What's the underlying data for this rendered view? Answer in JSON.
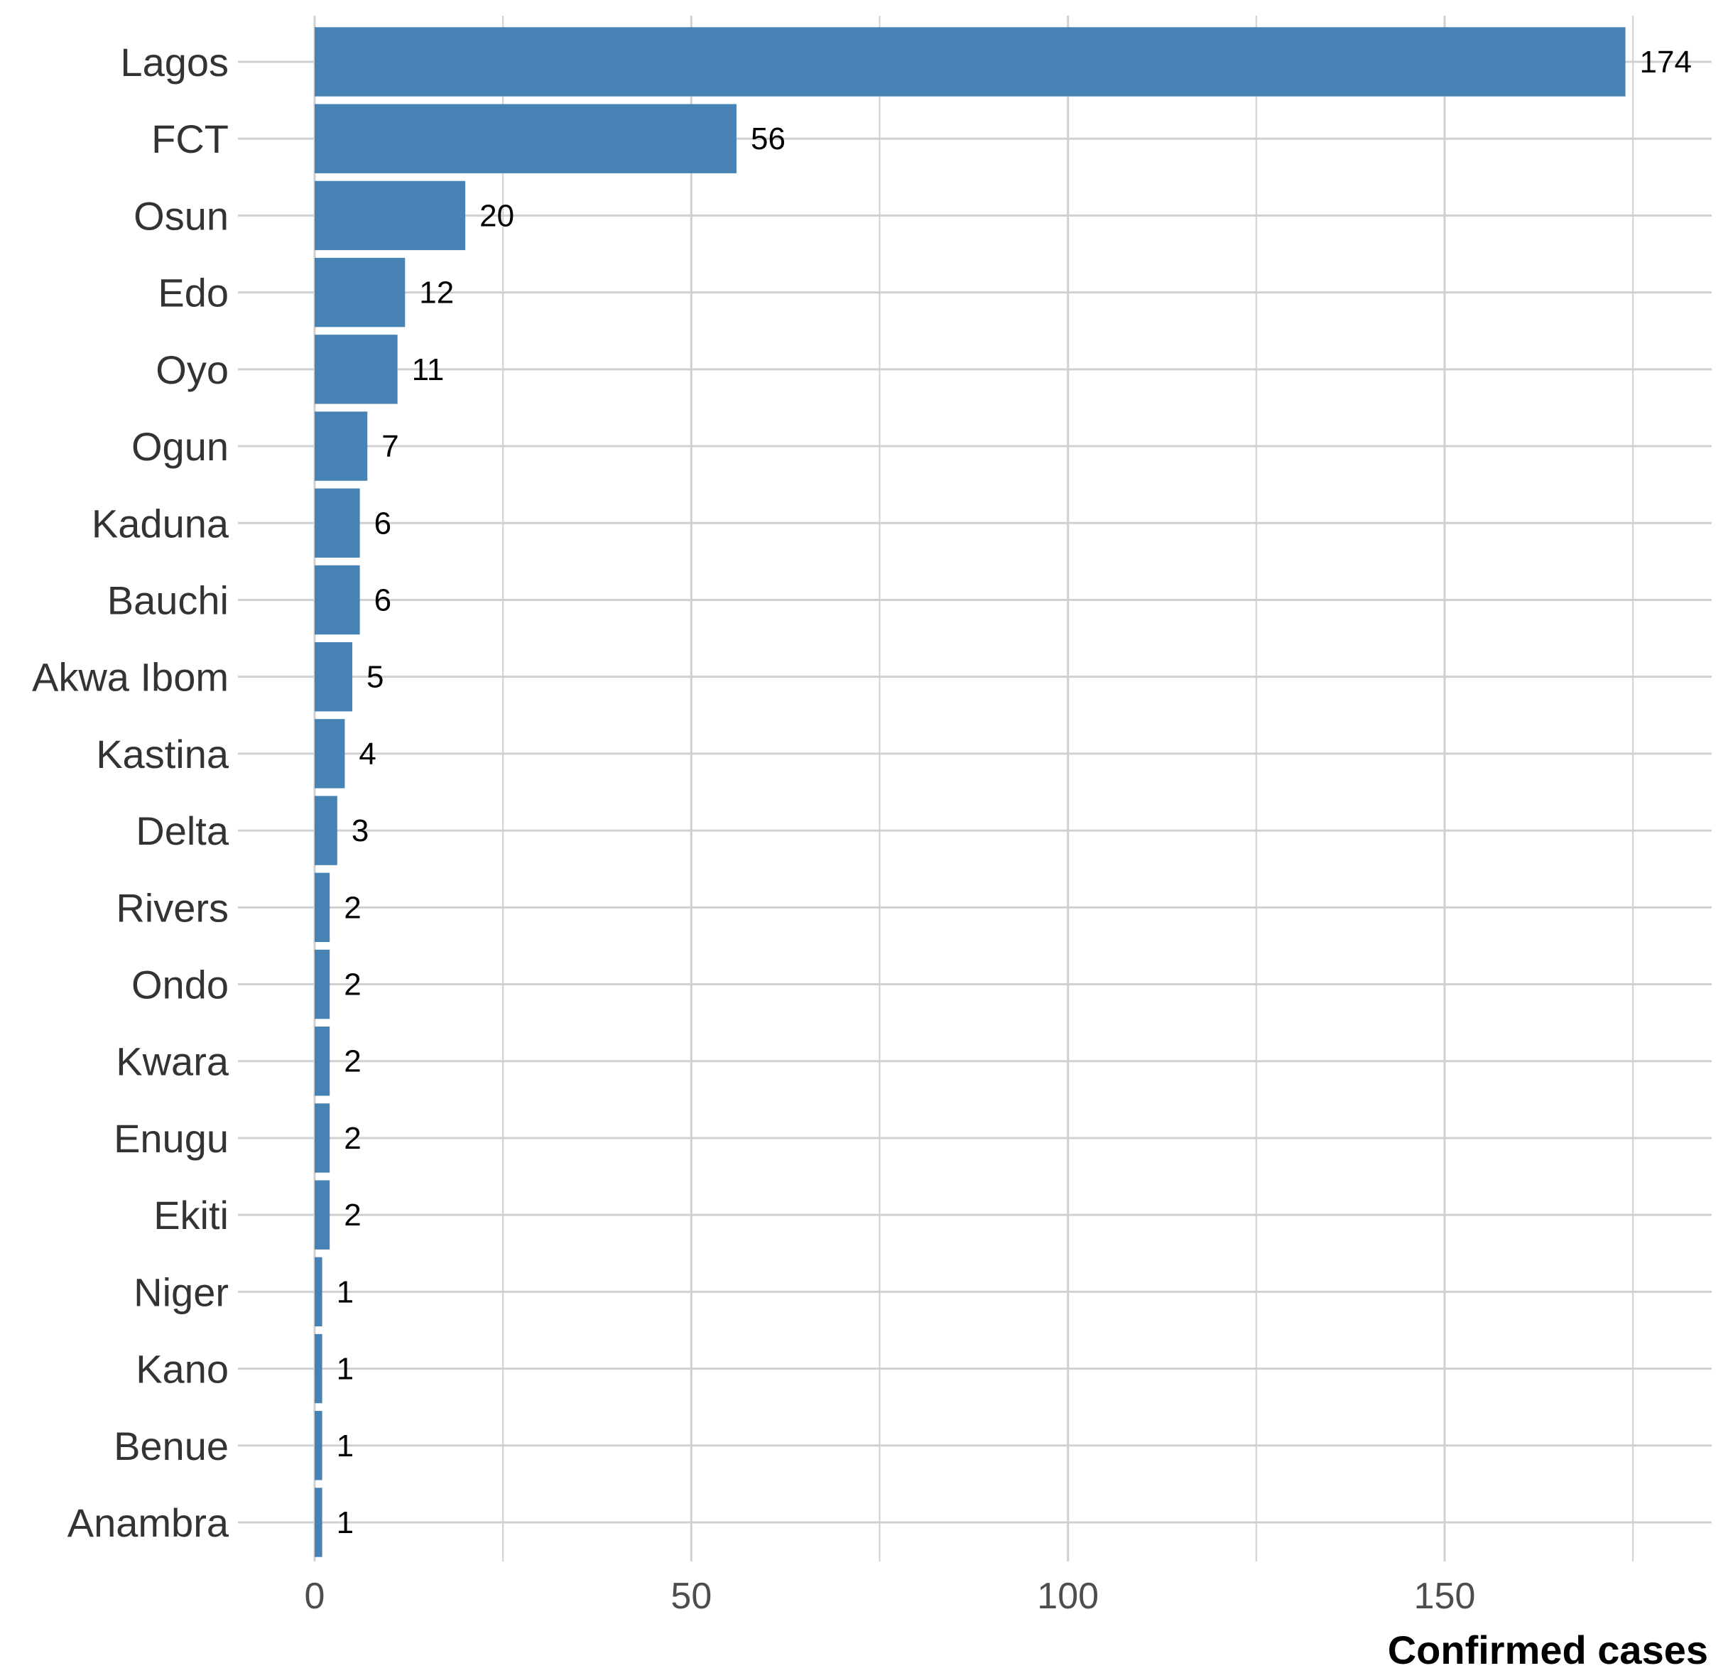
{
  "chart_data": {
    "type": "bar",
    "orientation": "horizontal",
    "categories": [
      "Lagos",
      "FCT",
      "Osun",
      "Edo",
      "Oyo",
      "Ogun",
      "Kaduna",
      "Bauchi",
      "Akwa Ibom",
      "Kastina",
      "Delta",
      "Rivers",
      "Ondo",
      "Kwara",
      "Enugu",
      "Ekiti",
      "Niger",
      "Kano",
      "Benue",
      "Anambra"
    ],
    "values": [
      174,
      56,
      20,
      12,
      11,
      7,
      6,
      6,
      5,
      4,
      3,
      2,
      2,
      2,
      2,
      2,
      1,
      1,
      1,
      1
    ],
    "data_labels": [
      "174",
      "56",
      "20",
      "12",
      "11",
      "7",
      "6",
      "6",
      "5",
      "4",
      "3",
      "2",
      "2",
      "2",
      "2",
      "2",
      "1",
      "1",
      "1",
      "1"
    ],
    "title": "",
    "xlabel": "Confirmed cases",
    "ylabel": "",
    "xlim": [
      -10,
      186
    ],
    "xticks": [
      0,
      50,
      100,
      150
    ],
    "xtick_labels": [
      "0",
      "50",
      "100",
      "150"
    ],
    "minor_xticks": [
      25,
      75,
      125,
      175
    ],
    "grid": true,
    "legend": "none",
    "bar_color": "#4682B4",
    "grid_color": "#d0d0d0"
  }
}
